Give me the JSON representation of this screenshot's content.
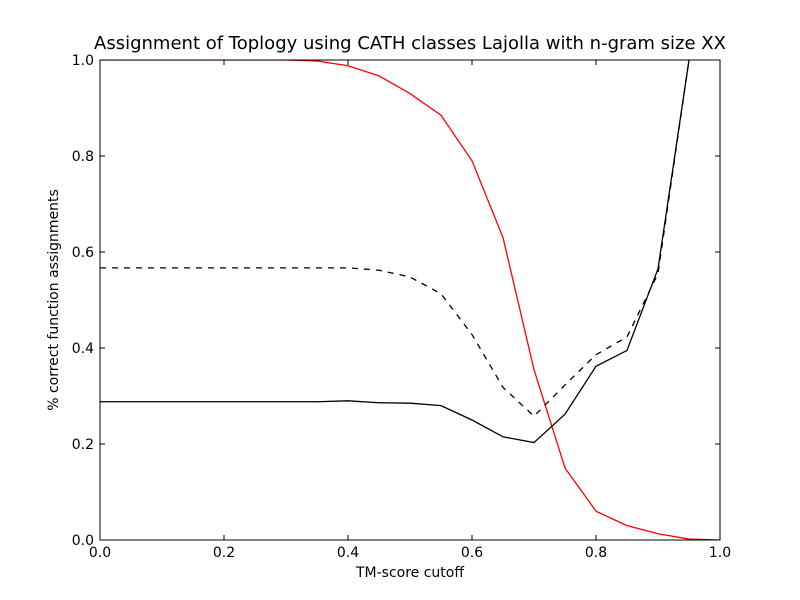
{
  "chart_data": {
    "type": "line",
    "title": "Assignment of Toplogy using CATH classes Lajolla with n-gram size XX",
    "xlabel": "TM-score cutoff",
    "ylabel": "% correct function assignments",
    "xlim": [
      0.0,
      1.0
    ],
    "ylim": [
      0.0,
      1.0
    ],
    "xticks": [
      "0.0",
      "0.2",
      "0.4",
      "0.6",
      "0.8",
      "1.0"
    ],
    "yticks": [
      "0.0",
      "0.2",
      "0.4",
      "0.6",
      "0.8",
      "1.0"
    ],
    "grid": false,
    "series": [
      {
        "color": "#ff0000",
        "linestyle": "solid",
        "x": [
          0.0,
          0.05,
          0.1,
          0.15,
          0.2,
          0.25,
          0.3,
          0.35,
          0.4,
          0.45,
          0.5,
          0.55,
          0.6,
          0.65,
          0.7,
          0.75,
          0.8,
          0.85,
          0.9,
          0.95,
          1.0
        ],
        "y": [
          1.0,
          1.0,
          1.0,
          1.0,
          1.0,
          1.0,
          1.0,
          0.998,
          0.988,
          0.967,
          0.93,
          0.885,
          0.79,
          0.63,
          0.355,
          0.15,
          0.06,
          0.03,
          0.013,
          0.002,
          0.0
        ]
      },
      {
        "color": "#000000",
        "linestyle": "dashed",
        "x": [
          0.0,
          0.05,
          0.1,
          0.15,
          0.2,
          0.25,
          0.3,
          0.35,
          0.4,
          0.45,
          0.5,
          0.55,
          0.6,
          0.65,
          0.7,
          0.75,
          0.8,
          0.85,
          0.9,
          0.95
        ],
        "y": [
          0.567,
          0.567,
          0.567,
          0.567,
          0.567,
          0.567,
          0.567,
          0.567,
          0.567,
          0.562,
          0.548,
          0.513,
          0.428,
          0.318,
          0.258,
          0.323,
          0.386,
          0.423,
          0.555,
          1.0
        ]
      },
      {
        "color": "#000000",
        "linestyle": "solid",
        "x": [
          0.0,
          0.05,
          0.1,
          0.15,
          0.2,
          0.25,
          0.3,
          0.35,
          0.4,
          0.45,
          0.5,
          0.55,
          0.6,
          0.65,
          0.7,
          0.75,
          0.8,
          0.85,
          0.9,
          0.95
        ],
        "y": [
          0.288,
          0.288,
          0.288,
          0.288,
          0.288,
          0.288,
          0.288,
          0.288,
          0.29,
          0.286,
          0.285,
          0.28,
          0.25,
          0.215,
          0.203,
          0.262,
          0.362,
          0.395,
          0.565,
          1.0
        ]
      }
    ]
  }
}
